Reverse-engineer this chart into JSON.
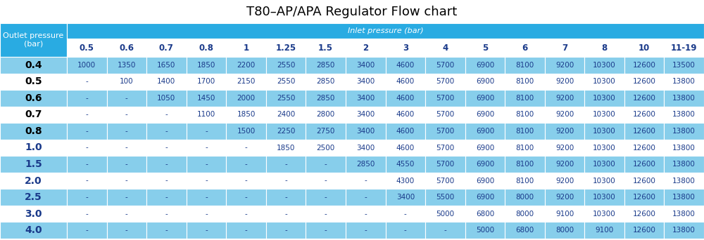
{
  "title": "T80–AP/APA Regulator Flow chart",
  "inlet_header": "Inlet pressure (bar)",
  "outlet_header_line1": "Outlet pressure",
  "outlet_header_line2": "(bar)",
  "col_headers": [
    "0.5",
    "0.6",
    "0.7",
    "0.8",
    "1",
    "1.25",
    "1.5",
    "2",
    "3",
    "4",
    "5",
    "6",
    "7",
    "8",
    "10",
    "11-19"
  ],
  "row_headers": [
    "0.4",
    "0.5",
    "0.6",
    "0.7",
    "0.8",
    "1.0",
    "1.5",
    "2.0",
    "2.5",
    "3.0",
    "4.0"
  ],
  "table_data": [
    [
      "1000",
      "1350",
      "1650",
      "1850",
      "2200",
      "2550",
      "2850",
      "3400",
      "4600",
      "5700",
      "6900",
      "8100",
      "9200",
      "10300",
      "12600",
      "13500"
    ],
    [
      "-",
      "100",
      "1400",
      "1700",
      "2150",
      "2550",
      "2850",
      "3400",
      "4600",
      "5700",
      "6900",
      "8100",
      "9200",
      "10300",
      "12600",
      "13800"
    ],
    [
      "-",
      "-",
      "1050",
      "1450",
      "2000",
      "2550",
      "2850",
      "3400",
      "4600",
      "5700",
      "6900",
      "8100",
      "9200",
      "10300",
      "12600",
      "13800"
    ],
    [
      "-",
      "-",
      "-",
      "1100",
      "1850",
      "2400",
      "2800",
      "3400",
      "4600",
      "5700",
      "6900",
      "8100",
      "9200",
      "10300",
      "12600",
      "13800"
    ],
    [
      "-",
      "-",
      "-",
      "-",
      "1500",
      "2250",
      "2750",
      "3400",
      "4600",
      "5700",
      "6900",
      "8100",
      "9200",
      "10300",
      "12600",
      "13800"
    ],
    [
      "-",
      "-",
      "-",
      "-",
      "-",
      "1850",
      "2500",
      "3400",
      "4600",
      "5700",
      "6900",
      "8100",
      "9200",
      "10300",
      "12600",
      "13800"
    ],
    [
      "-",
      "-",
      "-",
      "-",
      "-",
      "-",
      "-",
      "2850",
      "4550",
      "5700",
      "6900",
      "8100",
      "9200",
      "10300",
      "12600",
      "13800"
    ],
    [
      "-",
      "-",
      "-",
      "-",
      "-",
      "-",
      "-",
      "-",
      "4300",
      "5700",
      "6900",
      "8100",
      "9200",
      "10300",
      "12600",
      "13800"
    ],
    [
      "-",
      "-",
      "-",
      "-",
      "-",
      "-",
      "-",
      "-",
      "3400",
      "5500",
      "6900",
      "8000",
      "9200",
      "10300",
      "12600",
      "13800"
    ],
    [
      "-",
      "-",
      "-",
      "-",
      "-",
      "-",
      "-",
      "-",
      "-",
      "5000",
      "6800",
      "8000",
      "9100",
      "10300",
      "12600",
      "13800"
    ],
    [
      "-",
      "-",
      "-",
      "-",
      "-",
      "-",
      "-",
      "-",
      "-",
      "-",
      "5000",
      "6800",
      "8000",
      "9100",
      "12600",
      "13800"
    ]
  ],
  "row_bg_colors": [
    "#87CEEB",
    "#FFFFFF",
    "#87CEEB",
    "#FFFFFF",
    "#87CEEB",
    "#FFFFFF",
    "#87CEEB",
    "#FFFFFF",
    "#87CEEB",
    "#FFFFFF",
    "#87CEEB"
  ],
  "row_header_text_colors": [
    "#000000",
    "#000000",
    "#000000",
    "#000000",
    "#000000",
    "#1a3a8a",
    "#1a3a8a",
    "#1a3a8a",
    "#1a3a8a",
    "#1a3a8a",
    "#1a3a8a"
  ],
  "color_inlet_header_bg": "#29ABE2",
  "color_outlet_header_bg": "#29ABE2",
  "color_col_header_bg_even": "#FFFFFF",
  "color_col_header_bg_odd": "#FFFFFF",
  "color_text_inlet_header": "#FFFFFF",
  "color_text_outlet_header": "#FFFFFF",
  "color_text_col_header": "#1a3a8a",
  "color_text_data": "#1a3a8a",
  "color_title": "#000000",
  "title_fontsize": 13,
  "inlet_header_fontsize": 8,
  "col_header_fontsize": 8.5,
  "data_fontsize": 7.5,
  "row_header_fontsize": 10,
  "fig_width": 10.0,
  "fig_height": 3.42,
  "dpi": 100
}
